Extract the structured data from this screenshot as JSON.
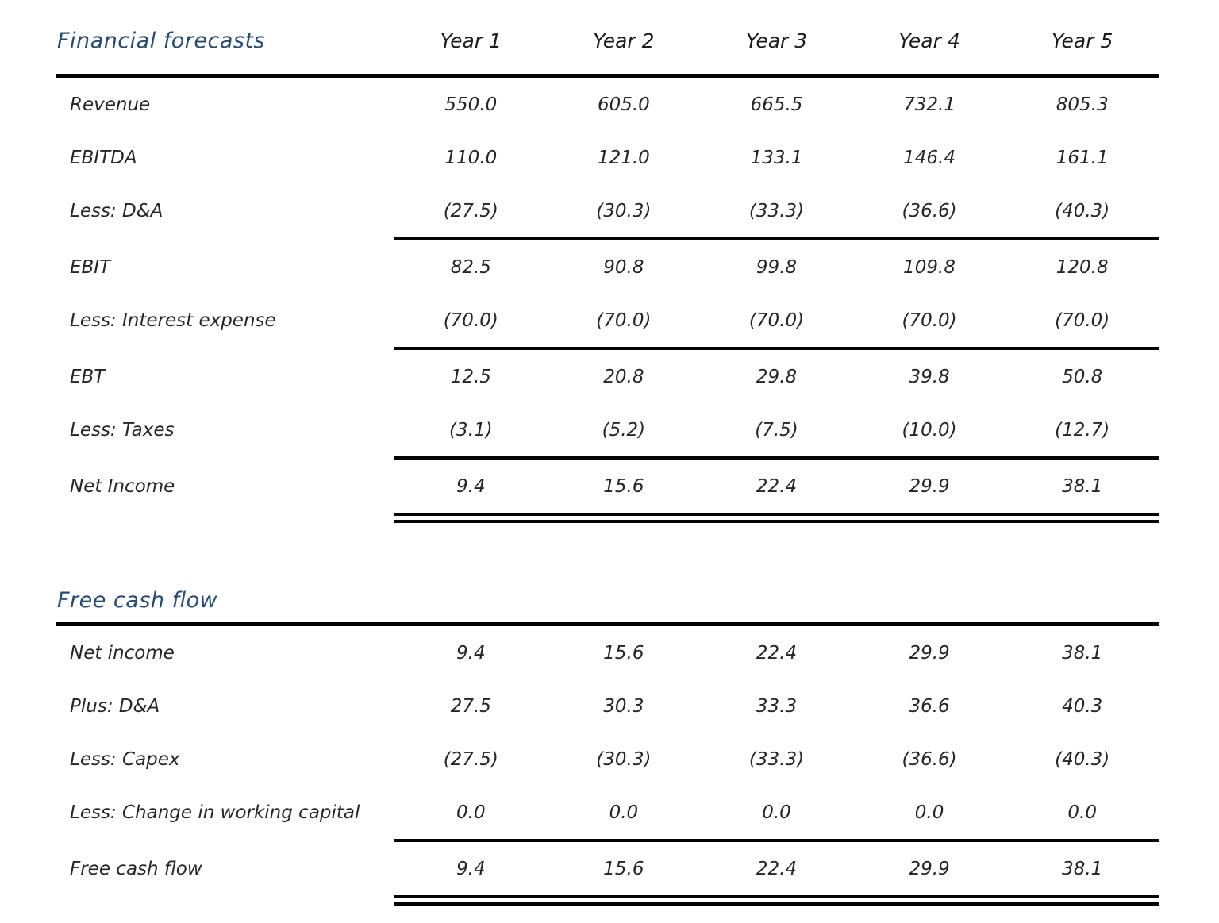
{
  "page": {
    "background": "#ffffff",
    "text_color": "#262626",
    "title_color": "#274b73",
    "line_color": "#050505"
  },
  "tables": [
    {
      "title": "Financial forecasts",
      "columns": [
        "Year 1",
        "Year 2",
        "Year 3",
        "Year 4",
        "Year 5"
      ],
      "rows": [
        {
          "label": "Revenue",
          "values": [
            "550.0",
            "605.0",
            "665.5",
            "732.1",
            "805.3"
          ],
          "rule_below": "none"
        },
        {
          "label": "EBITDA",
          "values": [
            "110.0",
            "121.0",
            "133.1",
            "146.4",
            "161.1"
          ],
          "rule_below": "none"
        },
        {
          "label": "Less: D&A",
          "values": [
            "(27.5)",
            "(30.3)",
            "(33.3)",
            "(36.6)",
            "(40.3)"
          ],
          "rule_below": "single"
        },
        {
          "label": "EBIT",
          "values": [
            "82.5",
            "90.8",
            "99.8",
            "109.8",
            "120.8"
          ],
          "rule_below": "none"
        },
        {
          "label": "Less: Interest expense",
          "values": [
            "(70.0)",
            "(70.0)",
            "(70.0)",
            "(70.0)",
            "(70.0)"
          ],
          "rule_below": "single"
        },
        {
          "label": "EBT",
          "values": [
            "12.5",
            "20.8",
            "29.8",
            "39.8",
            "50.8"
          ],
          "rule_below": "none"
        },
        {
          "label": "Less: Taxes",
          "values": [
            "(3.1)",
            "(5.2)",
            "(7.5)",
            "(10.0)",
            "(12.7)"
          ],
          "rule_below": "single"
        },
        {
          "label": "Net Income",
          "values": [
            "9.4",
            "15.6",
            "22.4",
            "29.9",
            "38.1"
          ],
          "rule_below": "double"
        }
      ]
    },
    {
      "title": "Free cash flow",
      "columns": [],
      "rows": [
        {
          "label": "Net income",
          "values": [
            "9.4",
            "15.6",
            "22.4",
            "29.9",
            "38.1"
          ],
          "rule_below": "none"
        },
        {
          "label": "Plus: D&A",
          "values": [
            "27.5",
            "30.3",
            "33.3",
            "36.6",
            "40.3"
          ],
          "rule_below": "none"
        },
        {
          "label": "Less: Capex",
          "values": [
            "(27.5)",
            "(30.3)",
            "(33.3)",
            "(36.6)",
            "(40.3)"
          ],
          "rule_below": "none"
        },
        {
          "label": "Less: Change in working capital",
          "values": [
            "0.0",
            "0.0",
            "0.0",
            "0.0",
            "0.0"
          ],
          "rule_below": "single"
        },
        {
          "label": "Free cash flow",
          "values": [
            "9.4",
            "15.6",
            "22.4",
            "29.9",
            "38.1"
          ],
          "rule_below": "double"
        }
      ]
    }
  ]
}
